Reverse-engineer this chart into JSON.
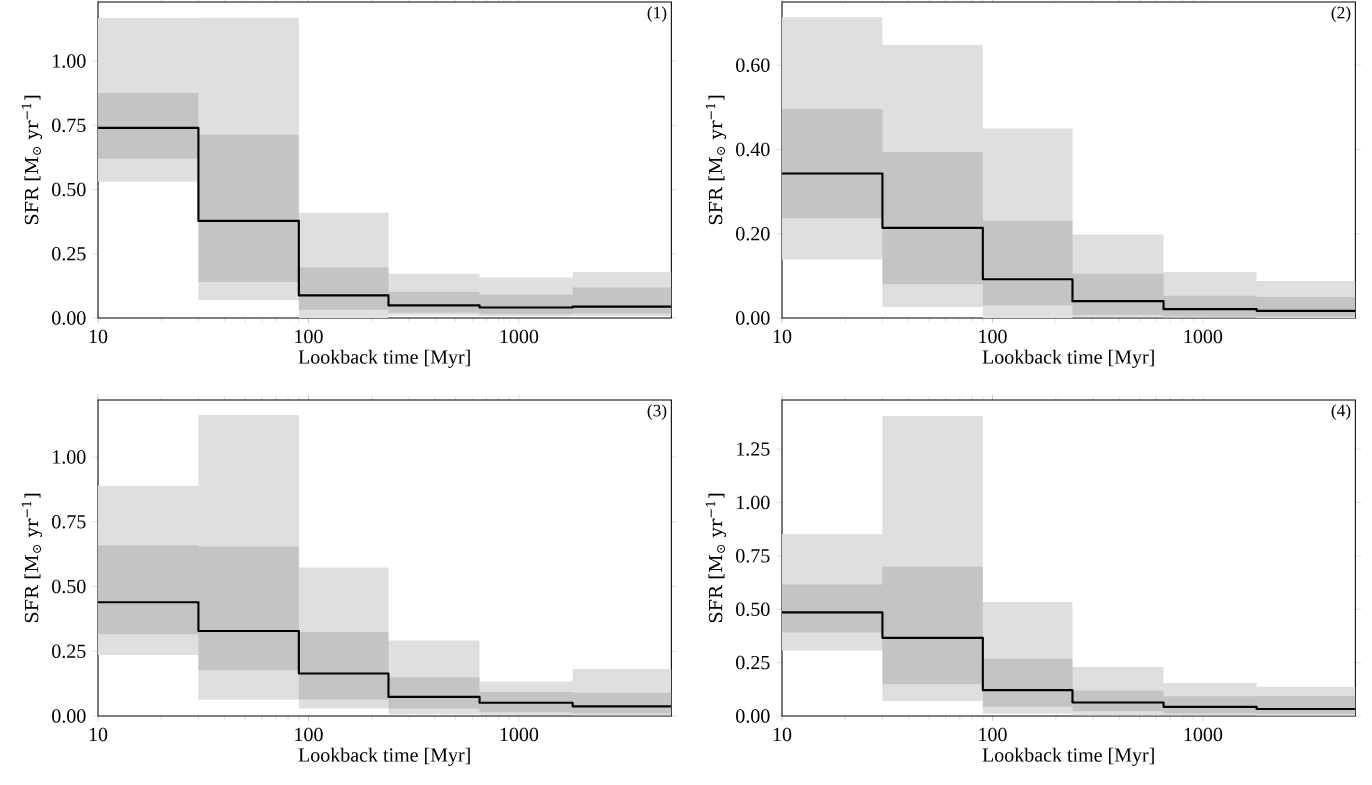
{
  "chart_data": [
    {
      "type": "step",
      "x": [
        10,
        30,
        90,
        240,
        650,
        1800,
        5300
      ],
      "xlim": [
        10,
        5300
      ],
      "ylim": [
        0,
        1.23
      ],
      "log": "x",
      "xlabel": "Lookback time   [Myr]",
      "ylabel": "SFR   [M$_{⊙}$ yr$^{−1}$]",
      "annotations": [
        "(1)"
      ],
      "xticks": [
        10,
        100,
        1000
      ],
      "yticks": [
        {
          "value": 0,
          "label": "0.00"
        },
        {
          "value": 0.25,
          "label": "0.25"
        },
        {
          "value": 0.5,
          "label": "0.50"
        },
        {
          "value": 0.75,
          "label": "0.75"
        },
        {
          "value": 1,
          "label": "1.00"
        }
      ],
      "series": [
        {
          "color": "#dfdfdf",
          "values": [
            null,
            null,
            null,
            null,
            null,
            null,
            null
          ],
          "lower": [
            0.53,
            0.07,
            0.0,
            0.01,
            0.007,
            0.008,
            0.008
          ],
          "upper": [
            1.168,
            1.17,
            0.41,
            0.172,
            0.158,
            0.179,
            0.179
          ]
        },
        {
          "color": "#c4c4c4",
          "values": [
            null,
            null,
            null,
            null,
            null,
            null,
            null
          ],
          "lower": [
            0.62,
            0.14,
            0.032,
            0.02,
            0.014,
            0.017,
            0.017
          ],
          "upper": [
            0.876,
            0.713,
            0.197,
            0.102,
            0.09,
            0.119,
            0.119
          ]
        },
        {
          "color": "#000000",
          "values": [
            0.74,
            0.378,
            0.088,
            0.049,
            0.041,
            0.044,
            0.044
          ]
        }
      ]
    },
    {
      "type": "step",
      "x": [
        10,
        30,
        90,
        240,
        650,
        1800,
        5300
      ],
      "xlim": [
        10,
        5300
      ],
      "ylim": [
        0,
        0.75
      ],
      "log": "x",
      "xlabel": "Lookback time   [Myr]",
      "ylabel": "SFR   [M$_{⊙}$ yr$^{−1}$]",
      "annotations": [
        "(2)"
      ],
      "xticks": [
        10,
        100,
        1000
      ],
      "yticks": [
        {
          "value": 0,
          "label": "0.00"
        },
        {
          "value": 0.2,
          "label": "0.20"
        },
        {
          "value": 0.4,
          "label": "0.40"
        },
        {
          "value": 0.6,
          "label": "0.60"
        }
      ],
      "series": [
        {
          "color": "#dfdfdf",
          "values": [
            null,
            null,
            null,
            null,
            null,
            null,
            null
          ],
          "lower": [
            0.139,
            0.026,
            0.0,
            0.002,
            0.001,
            0.0,
            0.0
          ],
          "upper": [
            0.714,
            0.648,
            0.45,
            0.198,
            0.109,
            0.088,
            0.088
          ]
        },
        {
          "color": "#c4c4c4",
          "values": [
            null,
            null,
            null,
            null,
            null,
            null,
            null
          ],
          "lower": [
            0.237,
            0.08,
            0.03,
            0.007,
            0.004,
            0.003,
            0.003
          ],
          "upper": [
            0.496,
            0.394,
            0.231,
            0.105,
            0.053,
            0.05,
            0.05
          ]
        },
        {
          "color": "#000000",
          "values": [
            0.343,
            0.214,
            0.092,
            0.04,
            0.021,
            0.017,
            0.017
          ]
        }
      ]
    },
    {
      "type": "step",
      "x": [
        10,
        30,
        90,
        240,
        650,
        1800,
        5300
      ],
      "xlim": [
        10,
        5300
      ],
      "ylim": [
        0,
        1.22
      ],
      "log": "x",
      "xlabel": "Lookback time   [Myr]",
      "ylabel": "SFR   [M$_{⊙}$ yr$^{−1}$]",
      "annotations": [
        "(3)"
      ],
      "xticks": [
        10,
        100,
        1000
      ],
      "yticks": [
        {
          "value": 0,
          "label": "0.00"
        },
        {
          "value": 0.25,
          "label": "0.25"
        },
        {
          "value": 0.5,
          "label": "0.50"
        },
        {
          "value": 0.75,
          "label": "0.75"
        },
        {
          "value": 1,
          "label": "1.00"
        }
      ],
      "series": [
        {
          "color": "#dfdfdf",
          "values": [
            null,
            null,
            null,
            null,
            null,
            null,
            null
          ],
          "lower": [
            0.235,
            0.063,
            0.029,
            0.007,
            0.004,
            0.003,
            0.003
          ],
          "upper": [
            0.889,
            1.162,
            0.573,
            0.291,
            0.133,
            0.181,
            0.181
          ]
        },
        {
          "color": "#c4c4c4",
          "values": [
            null,
            null,
            null,
            null,
            null,
            null,
            null
          ],
          "lower": [
            0.316,
            0.177,
            0.064,
            0.029,
            0.014,
            0.01,
            0.01
          ],
          "upper": [
            0.659,
            0.654,
            0.324,
            0.15,
            0.093,
            0.09,
            0.09
          ]
        },
        {
          "color": "#000000",
          "values": [
            0.439,
            0.328,
            0.164,
            0.074,
            0.051,
            0.037,
            0.037
          ]
        }
      ]
    },
    {
      "type": "step",
      "x": [
        10,
        30,
        90,
        240,
        650,
        1800,
        5300
      ],
      "xlim": [
        10,
        5300
      ],
      "ylim": [
        0,
        1.48
      ],
      "log": "x",
      "xlabel": "Lookback time   [Myr]",
      "ylabel": "SFR   [M$_{⊙}$ yr$^{−1}$]",
      "annotations": [
        "(4)"
      ],
      "xticks": [
        10,
        100,
        1000
      ],
      "yticks": [
        {
          "value": 0,
          "label": "0.00"
        },
        {
          "value": 0.25,
          "label": "0.25"
        },
        {
          "value": 0.5,
          "label": "0.50"
        },
        {
          "value": 0.75,
          "label": "0.75"
        },
        {
          "value": 1,
          "label": "1.00"
        },
        {
          "value": 1.25,
          "label": "1.25"
        }
      ],
      "series": [
        {
          "color": "#dfdfdf",
          "values": [
            null,
            null,
            null,
            null,
            null,
            null,
            null
          ],
          "lower": [
            0.307,
            0.07,
            0.01,
            0.004,
            0.003,
            0.002,
            0.002
          ],
          "upper": [
            0.851,
            1.405,
            0.534,
            0.229,
            0.155,
            0.137,
            0.137
          ]
        },
        {
          "color": "#c4c4c4",
          "values": [
            null,
            null,
            null,
            null,
            null,
            null,
            null
          ],
          "lower": [
            0.391,
            0.149,
            0.043,
            0.022,
            0.012,
            0.01,
            0.01
          ],
          "upper": [
            0.616,
            0.699,
            0.268,
            0.119,
            0.092,
            0.094,
            0.094
          ]
        },
        {
          "color": "#000000",
          "values": [
            0.485,
            0.366,
            0.121,
            0.063,
            0.043,
            0.033,
            0.033
          ]
        }
      ]
    }
  ]
}
